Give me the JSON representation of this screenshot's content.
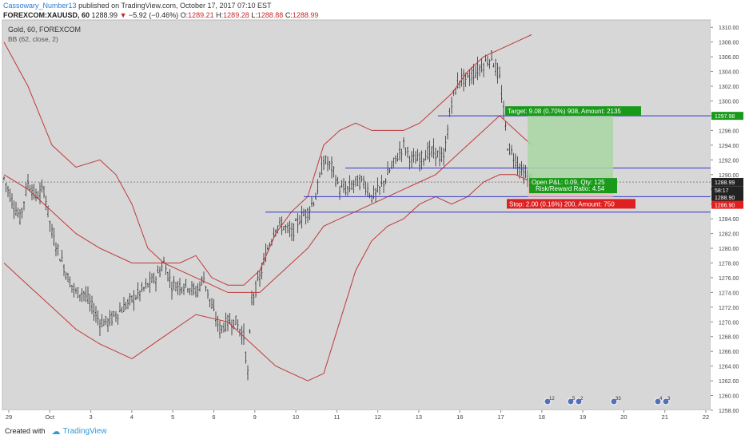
{
  "header": {
    "user": "Cassowary_Number13",
    "published": "published on TradingView.com, October 17, 2017 07:10 EST",
    "symbol": "FOREXCOM:XAUUSD, 60",
    "last": "1288.99",
    "change_arrow": "▼",
    "change": "−5.92 (−0.46%)",
    "o_label": "O:",
    "o": "1289.21",
    "h_label": "H:",
    "h": "1289.28",
    "l_label": "L:",
    "l": "1288.88",
    "c_label": "C:",
    "c": "1288.99"
  },
  "chart_data": {
    "type": "candlestick",
    "title": "Gold, 60, FOREXCOM",
    "indicator": "BB (62, close, 2)",
    "ylim": [
      1258,
      1311
    ],
    "y_ticks": [
      "1310.00",
      "1308.00",
      "1306.00",
      "1304.00",
      "1302.00",
      "1300.00",
      "1298.00",
      "1296.00",
      "1294.00",
      "1292.00",
      "1290.00",
      "1288.00",
      "1286.00",
      "1284.00",
      "1282.00",
      "1280.00",
      "1278.00",
      "1276.00",
      "1274.00",
      "1272.00",
      "1270.00",
      "1268.00",
      "1266.00",
      "1264.00",
      "1262.00",
      "1260.00",
      "1258.00"
    ],
    "x_ticks": [
      "29",
      "Oct",
      "3",
      "4",
      "5",
      "6",
      "9",
      "10",
      "11",
      "12",
      "13",
      "16",
      "17",
      "18",
      "19",
      "20",
      "21",
      "22"
    ],
    "price_path": [
      [
        0,
        1289.5
      ],
      [
        10,
        1286.5
      ],
      [
        20,
        1284
      ],
      [
        30,
        1289
      ],
      [
        40,
        1287
      ],
      [
        50,
        1288
      ],
      [
        60,
        1282
      ],
      [
        70,
        1279
      ],
      [
        80,
        1276
      ],
      [
        90,
        1274
      ],
      [
        100,
        1274
      ],
      [
        110,
        1272
      ],
      [
        120,
        1270
      ],
      [
        130,
        1270
      ],
      [
        140,
        1271
      ],
      [
        150,
        1272
      ],
      [
        160,
        1273
      ],
      [
        170,
        1274
      ],
      [
        180,
        1275
      ],
      [
        190,
        1276
      ],
      [
        200,
        1278
      ],
      [
        210,
        1275
      ],
      [
        220,
        1275
      ],
      [
        230,
        1275
      ],
      [
        240,
        1274
      ],
      [
        250,
        1276
      ],
      [
        260,
        1272
      ],
      [
        270,
        1269
      ],
      [
        280,
        1270
      ],
      [
        290,
        1270
      ],
      [
        300,
        1268
      ],
      [
        305,
        1263
      ],
      [
        310,
        1273
      ],
      [
        320,
        1276
      ],
      [
        330,
        1280
      ],
      [
        340,
        1283
      ],
      [
        350,
        1283
      ],
      [
        360,
        1282
      ],
      [
        370,
        1284
      ],
      [
        380,
        1285
      ],
      [
        390,
        1287
      ],
      [
        400,
        1292
      ],
      [
        410,
        1291
      ],
      [
        420,
        1288
      ],
      [
        430,
        1288
      ],
      [
        440,
        1289
      ],
      [
        450,
        1289
      ],
      [
        460,
        1287
      ],
      [
        470,
        1288
      ],
      [
        480,
        1290
      ],
      [
        490,
        1292
      ],
      [
        500,
        1294
      ],
      [
        510,
        1292
      ],
      [
        520,
        1292
      ],
      [
        530,
        1293
      ],
      [
        540,
        1293
      ],
      [
        550,
        1292
      ],
      [
        560,
        1300
      ],
      [
        570,
        1303
      ],
      [
        580,
        1303
      ],
      [
        590,
        1304
      ],
      [
        600,
        1305
      ],
      [
        610,
        1306
      ],
      [
        620,
        1303
      ],
      [
        630,
        1294
      ],
      [
        640,
        1292
      ],
      [
        650,
        1290
      ],
      [
        660,
        1289
      ]
    ],
    "bb_upper": [
      [
        0,
        1308
      ],
      [
        30,
        1302
      ],
      [
        60,
        1294
      ],
      [
        90,
        1291
      ],
      [
        120,
        1292
      ],
      [
        140,
        1290
      ],
      [
        160,
        1286
      ],
      [
        180,
        1280
      ],
      [
        200,
        1278
      ],
      [
        220,
        1278
      ],
      [
        240,
        1279
      ],
      [
        260,
        1276
      ],
      [
        280,
        1275
      ],
      [
        300,
        1275
      ],
      [
        320,
        1277
      ],
      [
        340,
        1282
      ],
      [
        360,
        1285
      ],
      [
        380,
        1287
      ],
      [
        400,
        1294
      ],
      [
        420,
        1296
      ],
      [
        440,
        1297
      ],
      [
        460,
        1296
      ],
      [
        480,
        1296
      ],
      [
        500,
        1296
      ],
      [
        520,
        1297
      ],
      [
        540,
        1299
      ],
      [
        560,
        1301
      ],
      [
        580,
        1304
      ],
      [
        600,
        1306
      ],
      [
        620,
        1307
      ],
      [
        640,
        1308
      ],
      [
        660,
        1309
      ]
    ],
    "bb_middle": [
      [
        0,
        1290
      ],
      [
        30,
        1288
      ],
      [
        60,
        1285
      ],
      [
        90,
        1282
      ],
      [
        120,
        1280
      ],
      [
        160,
        1278
      ],
      [
        200,
        1278
      ],
      [
        240,
        1276
      ],
      [
        280,
        1274
      ],
      [
        320,
        1274
      ],
      [
        340,
        1276
      ],
      [
        360,
        1278
      ],
      [
        380,
        1280
      ],
      [
        400,
        1283
      ],
      [
        420,
        1284
      ],
      [
        440,
        1285
      ],
      [
        460,
        1286
      ],
      [
        480,
        1287
      ],
      [
        500,
        1288
      ],
      [
        520,
        1289
      ],
      [
        540,
        1290
      ],
      [
        560,
        1292
      ],
      [
        580,
        1294
      ],
      [
        600,
        1296
      ],
      [
        620,
        1298
      ],
      [
        640,
        1296
      ],
      [
        660,
        1294
      ]
    ],
    "bb_lower": [
      [
        0,
        1278
      ],
      [
        30,
        1275
      ],
      [
        60,
        1272
      ],
      [
        90,
        1269
      ],
      [
        120,
        1267
      ],
      [
        140,
        1266
      ],
      [
        160,
        1265
      ],
      [
        200,
        1268
      ],
      [
        240,
        1271
      ],
      [
        280,
        1270
      ],
      [
        300,
        1268
      ],
      [
        320,
        1266
      ],
      [
        340,
        1264
      ],
      [
        360,
        1263
      ],
      [
        380,
        1262
      ],
      [
        400,
        1263
      ],
      [
        420,
        1270
      ],
      [
        440,
        1277
      ],
      [
        460,
        1281
      ],
      [
        480,
        1283
      ],
      [
        500,
        1284
      ],
      [
        520,
        1286
      ],
      [
        540,
        1287
      ],
      [
        560,
        1286
      ],
      [
        580,
        1287
      ],
      [
        600,
        1289
      ],
      [
        620,
        1290
      ],
      [
        640,
        1290
      ],
      [
        660,
        1289
      ]
    ],
    "horizontal_lines": [
      1297.98,
      1290.9,
      1287.0,
      1284.9
    ],
    "entry_price": 1288.99,
    "target_box": {
      "label": "Target: 9.08 (0.70%) 908, Amount: 2135",
      "price": 1297.98
    },
    "pnl_box": {
      "label1": "Open P&L: 0.09, Qty: 125",
      "label2": "Risk/Reward Ratio: 4.54"
    },
    "stop_box": {
      "label": "Stop: 2.00 (0.16%) 200, Amount: 750",
      "price": 1286.9
    },
    "price_tags": [
      {
        "text": "1297.98",
        "price": 1297.98,
        "color": "#1a9a1a"
      },
      {
        "text": "1288.99",
        "price": 1289.0,
        "color": "#222222"
      },
      {
        "text": "58:17",
        "price": 1287.9,
        "color": "#222222"
      },
      {
        "text": "1288.90",
        "price": 1286.95,
        "color": "#222222"
      },
      {
        "text": "1286.90",
        "price": 1285.9,
        "color": "#e02020"
      }
    ],
    "events": [
      {
        "x_index": 0,
        "count": "12"
      },
      {
        "x_index": 1,
        "count": "5"
      },
      {
        "x_index": 1,
        "count": "2"
      },
      {
        "x_index": 2,
        "count": "33"
      },
      {
        "x_index": 3,
        "count": "4"
      },
      {
        "x_index": 3,
        "count": "3"
      }
    ],
    "colors": {
      "candle": "#2a2a2a",
      "bb": "#c0393b",
      "level": "#3535c8",
      "target": "#1a9a1a",
      "stop": "#e02020",
      "target_fill": "#a9d6a3",
      "plot_bg": "#d7d7d7"
    }
  },
  "footer": {
    "created": "Created with",
    "brand": "TradingView"
  }
}
